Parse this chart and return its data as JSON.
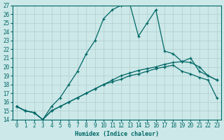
{
  "xlabel": "Humidex (Indice chaleur)",
  "bg_color": "#cce8e8",
  "grid_color": "#b0cccc",
  "line_color": "#006666",
  "xlim": [
    -0.5,
    23.5
  ],
  "ylim": [
    14,
    27
  ],
  "yticks": [
    14,
    15,
    16,
    17,
    18,
    19,
    20,
    21,
    22,
    23,
    24,
    25,
    26,
    27
  ],
  "xticks": [
    0,
    1,
    2,
    3,
    4,
    5,
    6,
    7,
    8,
    9,
    10,
    11,
    12,
    13,
    14,
    15,
    16,
    17,
    18,
    19,
    20,
    21,
    22,
    23
  ],
  "line1_x": [
    0,
    1,
    2,
    3,
    4,
    5,
    6,
    7,
    8,
    9,
    10,
    11,
    12,
    13,
    14,
    15,
    16,
    17,
    18,
    19,
    20,
    21,
    22,
    23
  ],
  "line1_y": [
    15.5,
    15.0,
    14.8,
    14.0,
    15.0,
    15.5,
    16.0,
    16.5,
    17.0,
    17.5,
    18.0,
    18.5,
    19.0,
    19.3,
    19.6,
    19.8,
    20.0,
    20.3,
    20.5,
    20.6,
    20.5,
    20.0,
    19.0,
    18.5
  ],
  "line2_x": [
    0,
    1,
    2,
    3,
    4,
    5,
    6,
    7,
    8,
    9,
    10,
    11,
    12,
    13,
    14,
    15,
    16,
    17,
    18,
    19,
    20,
    21,
    22,
    23
  ],
  "line2_y": [
    15.5,
    15.0,
    14.8,
    14.0,
    15.0,
    15.5,
    16.0,
    16.5,
    17.0,
    17.5,
    18.0,
    18.3,
    18.6,
    19.0,
    19.2,
    19.5,
    19.8,
    20.0,
    20.2,
    19.5,
    19.2,
    18.8,
    18.5,
    16.5
  ],
  "line3_x": [
    0,
    1,
    2,
    3,
    4,
    5,
    6,
    7,
    8,
    9,
    10,
    11,
    12,
    13,
    14,
    15,
    16,
    17,
    18,
    19,
    20,
    21,
    22,
    23
  ],
  "line3_y": [
    15.5,
    15.0,
    14.8,
    14.0,
    15.5,
    16.5,
    18.0,
    19.5,
    21.5,
    23.0,
    25.5,
    26.5,
    27.0,
    27.2,
    23.5,
    25.0,
    26.5,
    21.8,
    21.5,
    20.6,
    21.0,
    19.5,
    19.0,
    18.5
  ],
  "tick_fontsize": 5.5
}
